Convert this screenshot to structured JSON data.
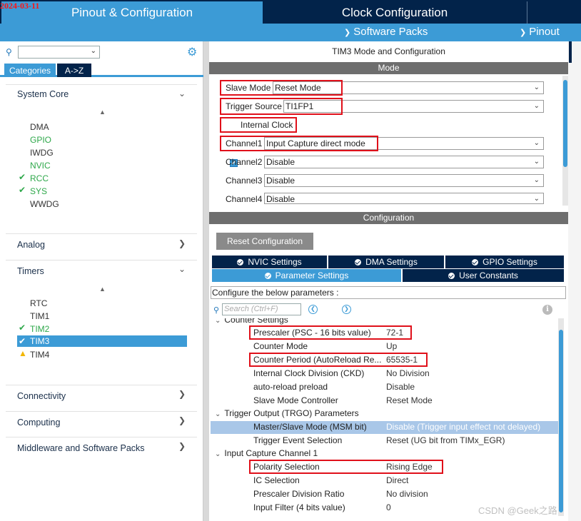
{
  "date_stamp": "2024-03-11",
  "header": {
    "tab_pinout": "Pinout & Configuration",
    "tab_clock": "Clock Configuration",
    "software_packs": "Software Packs",
    "pinout": "Pinout"
  },
  "left": {
    "tab_categories": "Categories",
    "tab_atoz": "A->Z",
    "categories": {
      "system_core": "System Core",
      "analog": "Analog",
      "timers": "Timers",
      "connectivity": "Connectivity",
      "computing": "Computing",
      "middleware": "Middleware and Software Packs"
    },
    "system_core_items": [
      "DMA",
      "GPIO",
      "IWDG",
      "NVIC",
      "RCC",
      "SYS",
      "WWDG"
    ],
    "timers_items": [
      "RTC",
      "TIM1",
      "TIM2",
      "TIM3",
      "TIM4"
    ]
  },
  "right": {
    "title": "TIM3 Mode and Configuration",
    "mode_header": "Mode",
    "slave_mode_label": "Slave Mode",
    "slave_mode_value": "Reset Mode",
    "trigger_source_label": "Trigger Source",
    "trigger_source_value": "TI1FP1",
    "internal_clock_label": "Internal Clock",
    "channel1_label": "Channel1",
    "channel1_value": "Input Capture direct mode",
    "channel2_label": "Channel2",
    "channel2_value": "Disable",
    "channel3_label": "Channel3",
    "channel3_value": "Disable",
    "channel4_label": "Channel4",
    "channel4_value": "Disable",
    "config_header": "Configuration",
    "reset_button": "Reset Configuration",
    "tabs": {
      "nvic": "NVIC Settings",
      "dma": "DMA Settings",
      "gpio": "GPIO Settings",
      "params": "Parameter Settings",
      "user_constants": "User Constants"
    },
    "config_desc": "Configure the below parameters :",
    "search_placeholder": "Search (Ctrl+F)",
    "group_counter": "Counter Settings",
    "group_trgo": "Trigger Output (TRGO) Parameters",
    "group_ic1": "Input Capture Channel 1",
    "params": {
      "prescaler": {
        "name": "Prescaler (PSC - 16 bits value)",
        "value": "72-1"
      },
      "counter_mode": {
        "name": "Counter Mode",
        "value": "Up"
      },
      "counter_period": {
        "name": "Counter Period (AutoReload Re...",
        "value": "65535-1"
      },
      "ckd": {
        "name": "Internal Clock Division (CKD)",
        "value": "No Division"
      },
      "arpe": {
        "name": "auto-reload preload",
        "value": "Disable"
      },
      "slave_ctrl": {
        "name": "Slave Mode Controller",
        "value": "Reset Mode"
      },
      "msm": {
        "name": "Master/Slave Mode (MSM bit)",
        "value": "Disable (Trigger input effect not delayed)"
      },
      "trgo_event": {
        "name": "Trigger Event Selection",
        "value": "Reset (UG bit from TIMx_EGR)"
      },
      "polarity": {
        "name": "Polarity Selection",
        "value": "Rising Edge"
      },
      "ic_sel": {
        "name": "IC Selection",
        "value": "Direct"
      },
      "psc_div": {
        "name": "Prescaler Division Ratio",
        "value": "No division"
      },
      "filter": {
        "name": "Input Filter (4 bits value)",
        "value": "0"
      }
    }
  },
  "watermark": "CSDN @Geek之路"
}
